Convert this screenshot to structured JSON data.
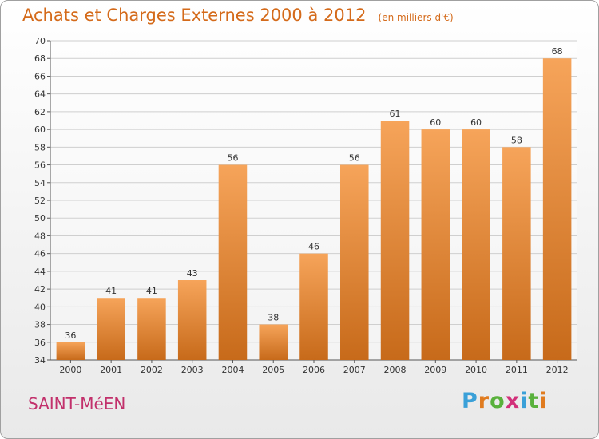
{
  "header": {
    "title": "Achats et Charges Externes 2000 à 2012",
    "unit": "(en milliers d'€)"
  },
  "place_name": "SAINT-MéEN",
  "logo": {
    "text": "Proxiti",
    "letter_colors": [
      "#3aa0d8",
      "#e07b1f",
      "#59b13c",
      "#d2307a",
      "#3aa0d8",
      "#59b13c",
      "#e07b1f"
    ]
  },
  "colors": {
    "bar_top": "#f6a45a",
    "bar_bottom": "#c76a1a",
    "grid": "#cfcfcf",
    "title": "#d46a1a"
  },
  "chart_data": {
    "type": "bar",
    "categories": [
      "2000",
      "2001",
      "2002",
      "2003",
      "2004",
      "2005",
      "2006",
      "2007",
      "2008",
      "2009",
      "2010",
      "2011",
      "2012"
    ],
    "values": [
      36,
      41,
      41,
      43,
      56,
      38,
      46,
      56,
      61,
      60,
      60,
      58,
      68
    ],
    "title": "Achats et Charges Externes 2000 à 2012",
    "subtitle": "(en milliers d'€)",
    "xlabel": "",
    "ylabel": "",
    "ylim": [
      34,
      70
    ],
    "ytick_step": 2,
    "grid": true
  }
}
